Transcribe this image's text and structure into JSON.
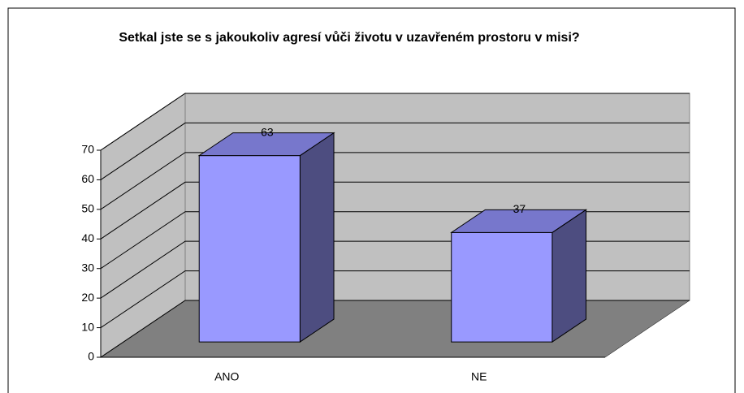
{
  "chart_data": {
    "type": "bar",
    "title": "Setkal jste se s jakoukoliv agresí vůči životu v uzavřeném prostoru v misi?",
    "categories": [
      "ANO",
      "NE"
    ],
    "values": [
      63,
      37
    ],
    "color": "#9999ff",
    "ylim": [
      0,
      70
    ],
    "yticks": [
      0,
      10,
      20,
      30,
      40,
      50,
      60,
      70
    ],
    "grid": true
  }
}
